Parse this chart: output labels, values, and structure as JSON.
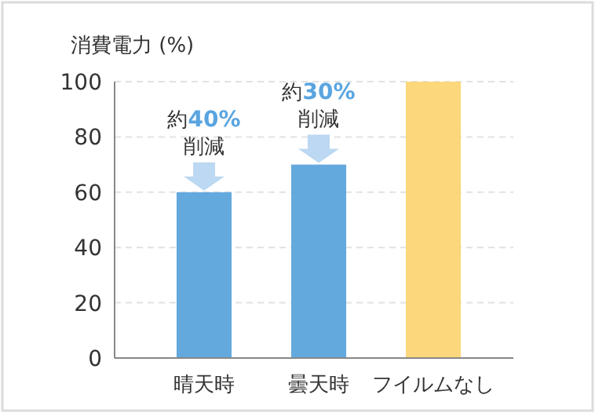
{
  "chart_data": {
    "type": "bar",
    "ylabel": "消費電力 (%)",
    "categories": [
      "晴天時",
      "曇天時",
      "フイルムなし"
    ],
    "values": [
      60,
      70,
      100
    ],
    "colors": [
      "#64a9de",
      "#64a9de",
      "#fcd77b"
    ],
    "ylim": [
      0,
      100
    ],
    "yticks": [
      0,
      20,
      40,
      60,
      80,
      100
    ],
    "grid": "y",
    "annotations": [
      {
        "text": "約40%\n削減",
        "x": "晴天時",
        "y": 60
      },
      {
        "text": "約30%\n削減",
        "x": "曇天時",
        "y": 70
      }
    ]
  }
}
